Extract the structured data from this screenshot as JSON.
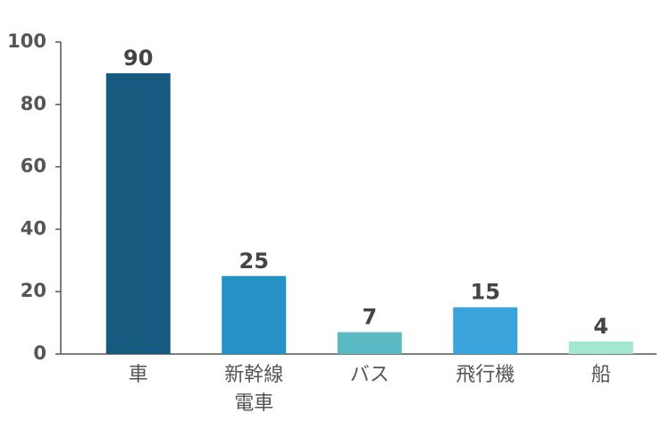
{
  "chart_data": {
    "type": "bar",
    "categories": [
      "車",
      "新幹線電車",
      "バス",
      "飛行機",
      "船"
    ],
    "values": [
      90,
      25,
      7,
      15,
      4
    ],
    "colors": [
      "#165a80",
      "#2591c4",
      "#5bb9c4",
      "#3aa3dc",
      "#a5e6cf"
    ],
    "ylim": [
      0,
      100
    ],
    "yticks": [
      0,
      20,
      40,
      60,
      80,
      100
    ],
    "grid": false
  }
}
